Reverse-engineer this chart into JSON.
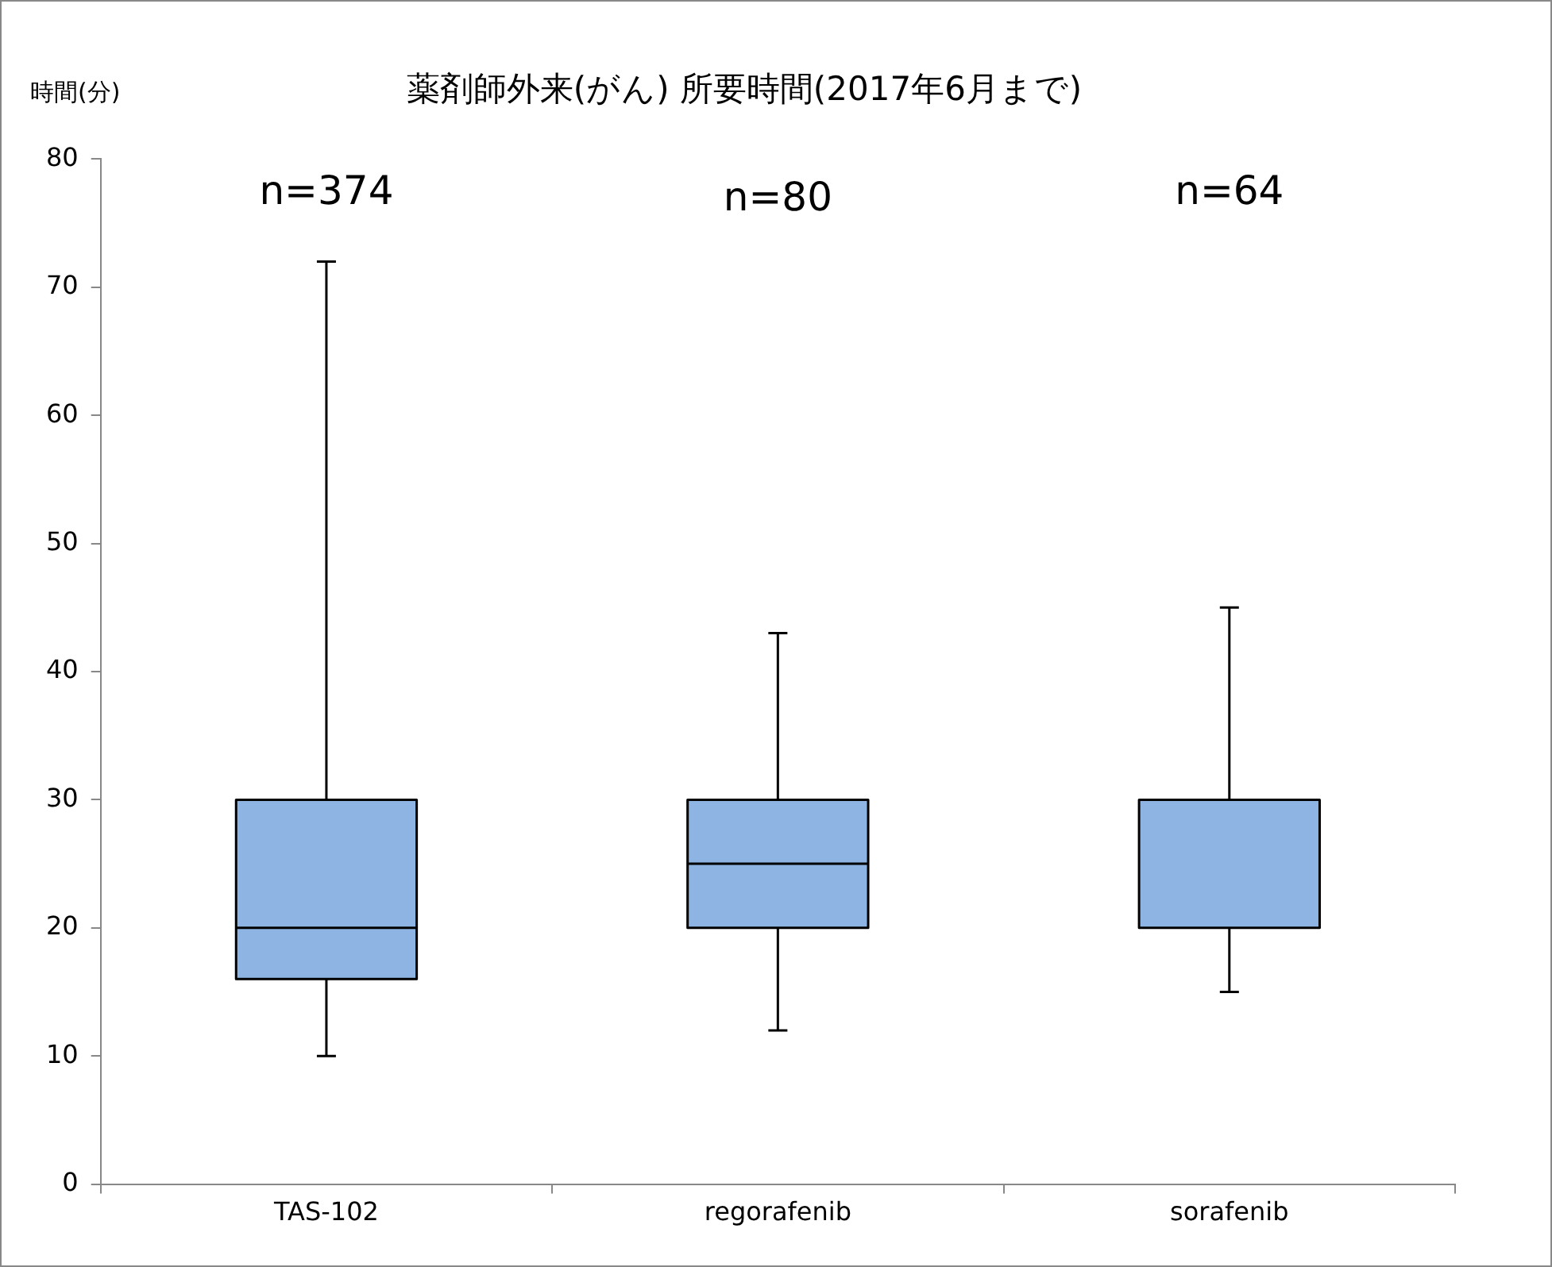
{
  "chart_data": {
    "type": "box",
    "title": "薬剤師外来(がん) 所要時間(2017年6月まで)",
    "ylabel": "時間(分)",
    "categories": [
      "TAS-102",
      "regorafenib",
      "sorafenib"
    ],
    "boxes": [
      {
        "low": 10,
        "q1": 16,
        "median": 20,
        "q3": 30,
        "high": 72
      },
      {
        "low": 12,
        "q1": 20,
        "median": 25,
        "q3": 30,
        "high": 43
      },
      {
        "low": 15,
        "q1": 20,
        "median": 30,
        "q3": 30,
        "high": 45
      }
    ],
    "color": "#8db4e2",
    "ylim": [
      0,
      80
    ],
    "yticks": [
      0,
      10,
      20,
      30,
      40,
      50,
      60,
      70,
      80
    ],
    "grid": false,
    "legend": false,
    "annotations": [
      "n=374",
      "n=80",
      "n=64"
    ]
  }
}
